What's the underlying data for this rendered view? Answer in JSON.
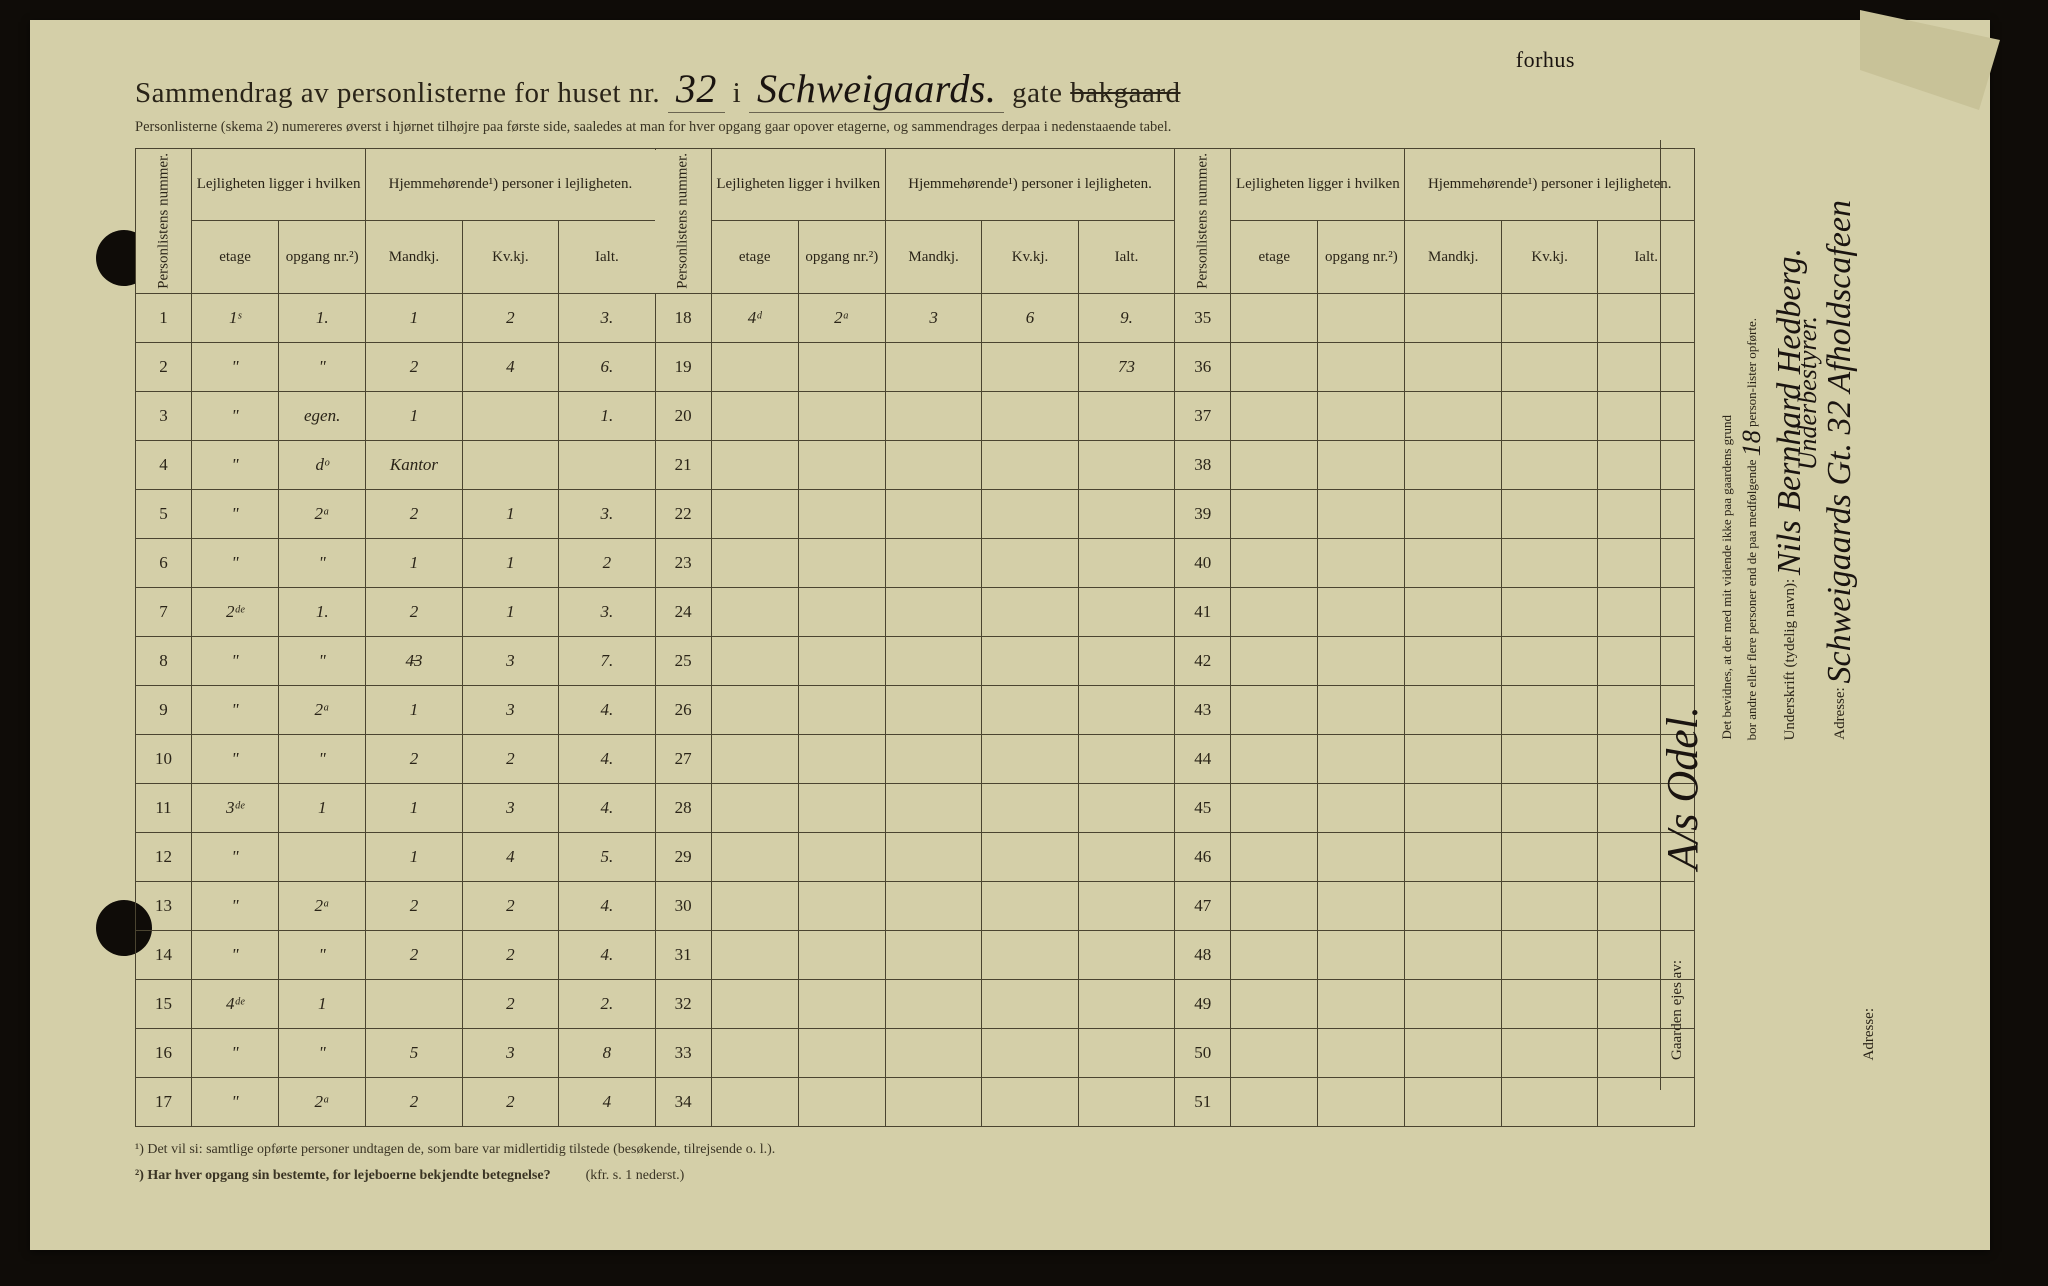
{
  "colors": {
    "paper": "#d4cfa8",
    "ink": "#2a2418",
    "handwriting": "#1a1410",
    "border": "#4a4430",
    "background": "#0f0c08"
  },
  "title": {
    "prefix": "Sammendrag av personlisterne for huset nr.",
    "house_no": "32",
    "mid": "i",
    "street": "Schweigaards.",
    "suffix": "gate",
    "struck": "bakgaard",
    "above": "forhus"
  },
  "subtitle": "Personlisterne (skema 2) numereres øverst i hjørnet tilhøjre paa første side, saaledes at man for hver opgang gaar opover etagerne, og sammendrages derpaa i nedenstaaende tabel.",
  "headers": {
    "personlistens": "Personlistens nummer.",
    "lejligheten": "Lejligheten ligger i hvilken",
    "hjemme": "Hjemmehørende¹) personer i lejligheten.",
    "etage": "etage",
    "opgang": "opgang nr.²)",
    "mandkj": "Mandkj.",
    "kvkj": "Kv.kj.",
    "ialt": "Ialt."
  },
  "rows_block1": [
    {
      "n": "1",
      "etage": "1ˢ",
      "opg": "1.",
      "m": "1",
      "k": "2",
      "i": "3."
    },
    {
      "n": "2",
      "etage": "\"",
      "opg": "\"",
      "m": "2",
      "k": "4",
      "i": "6."
    },
    {
      "n": "3",
      "etage": "\"",
      "opg": "egen.",
      "m": "1",
      "k": "",
      "i": "1."
    },
    {
      "n": "4",
      "etage": "\"",
      "opg": "dᵒ",
      "m": "Kantor",
      "k": "",
      "i": ""
    },
    {
      "n": "5",
      "etage": "\"",
      "opg": "2ᵃ",
      "m": "2",
      "k": "1",
      "i": "3."
    },
    {
      "n": "6",
      "etage": "\"",
      "opg": "\"",
      "m": "1",
      "k": "1",
      "i": "2"
    },
    {
      "n": "7",
      "etage": "2ᵈᵉ",
      "opg": "1.",
      "m": "2",
      "k": "1",
      "i": "3."
    },
    {
      "n": "8",
      "etage": "\"",
      "opg": "\"",
      "m": "4̶3",
      "k": "3",
      "i": "7."
    },
    {
      "n": "9",
      "etage": "\"",
      "opg": "2ᵃ",
      "m": "1",
      "k": "3",
      "i": "4."
    },
    {
      "n": "10",
      "etage": "\"",
      "opg": "\"",
      "m": "2",
      "k": "2",
      "i": "4."
    },
    {
      "n": "11",
      "etage": "3ᵈᵉ",
      "opg": "1",
      "m": "1",
      "k": "3",
      "i": "4."
    },
    {
      "n": "12",
      "etage": "\"",
      "opg": "",
      "m": "1",
      "k": "4",
      "i": "5."
    },
    {
      "n": "13",
      "etage": "\"",
      "opg": "2ᵃ",
      "m": "2",
      "k": "2",
      "i": "4."
    },
    {
      "n": "14",
      "etage": "\"",
      "opg": "\"",
      "m": "2",
      "k": "2",
      "i": "4."
    },
    {
      "n": "15",
      "etage": "4ᵈᵉ",
      "opg": "1",
      "m": "",
      "k": "2",
      "i": "2."
    },
    {
      "n": "16",
      "etage": "\"",
      "opg": "\"",
      "m": "5",
      "k": "3",
      "i": "8"
    },
    {
      "n": "17",
      "etage": "\"",
      "opg": "2ᵃ",
      "m": "2",
      "k": "2",
      "i": "4"
    }
  ],
  "rows_block2": [
    {
      "n": "18",
      "etage": "4ᵈ",
      "opg": "2ᵃ",
      "m": "3",
      "k": "6",
      "i": "9."
    },
    {
      "n": "19",
      "etage": "",
      "opg": "",
      "m": "",
      "k": "",
      "i": ""
    },
    {
      "n": "20",
      "etage": "",
      "opg": "",
      "m": "",
      "k": "",
      "i": ""
    },
    {
      "n": "21",
      "etage": "",
      "opg": "",
      "m": "",
      "k": "",
      "i": ""
    },
    {
      "n": "22",
      "etage": "",
      "opg": "",
      "m": "",
      "k": "",
      "i": ""
    },
    {
      "n": "23",
      "etage": "",
      "opg": "",
      "m": "",
      "k": "",
      "i": ""
    },
    {
      "n": "24",
      "etage": "",
      "opg": "",
      "m": "",
      "k": "",
      "i": ""
    },
    {
      "n": "25",
      "etage": "",
      "opg": "",
      "m": "",
      "k": "",
      "i": ""
    },
    {
      "n": "26",
      "etage": "",
      "opg": "",
      "m": "",
      "k": "",
      "i": ""
    },
    {
      "n": "27",
      "etage": "",
      "opg": "",
      "m": "",
      "k": "",
      "i": ""
    },
    {
      "n": "28",
      "etage": "",
      "opg": "",
      "m": "",
      "k": "",
      "i": ""
    },
    {
      "n": "29",
      "etage": "",
      "opg": "",
      "m": "",
      "k": "",
      "i": ""
    },
    {
      "n": "30",
      "etage": "",
      "opg": "",
      "m": "",
      "k": "",
      "i": ""
    },
    {
      "n": "31",
      "etage": "",
      "opg": "",
      "m": "",
      "k": "",
      "i": ""
    },
    {
      "n": "32",
      "etage": "",
      "opg": "",
      "m": "",
      "k": "",
      "i": ""
    },
    {
      "n": "33",
      "etage": "",
      "opg": "",
      "m": "",
      "k": "",
      "i": ""
    },
    {
      "n": "34",
      "etage": "",
      "opg": "",
      "m": "",
      "k": "",
      "i": ""
    }
  ],
  "block2_sum": "73",
  "rows_block3_nums": [
    "35",
    "36",
    "37",
    "38",
    "39",
    "40",
    "41",
    "42",
    "43",
    "44",
    "45",
    "46",
    "47",
    "48",
    "49",
    "50",
    "51"
  ],
  "footnote1": "¹)  Det vil si: samtlige opførte personer undtagen de, som bare var midlertidig tilstede (besøkende, tilrejsende o. l.).",
  "footnote2": "²)  Har hver opgang sin bestemte, for lejeboerne bekjendte betegnelse?",
  "footnote2_ref": "(kfr. s. 1 nederst.)",
  "side": {
    "gaarden_ejes": "Gaarden ejes av:",
    "owner": "A/s Odel.",
    "det_bevidnes": "Det bevidnes, at der med mit vidende ikke paa gaardens grund",
    "bor_andre": "bor andre eller flere personer end de paa medfølgende",
    "person_count": "18",
    "lister": "person-lister opførte.",
    "underskrift_lbl": "Underskrift (tydelig navn):",
    "underskrift": "Nils Bernhard Hedberg.",
    "underbestyrer": "Underbestyrer.",
    "adresse_lbl": "Adresse:",
    "adresse": "Schweigaards Gt. 32 Afholdscafeen",
    "adresse2_lbl": "Adresse:"
  }
}
